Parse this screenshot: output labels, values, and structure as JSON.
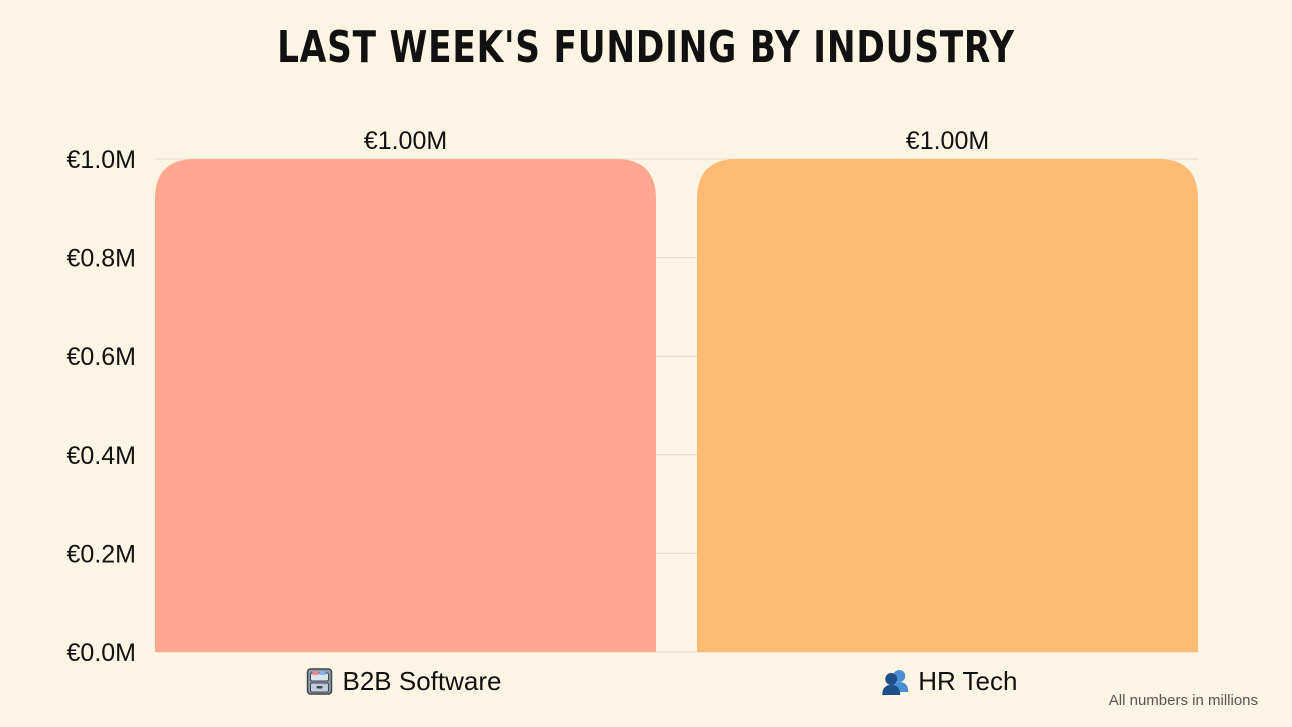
{
  "chart_data": {
    "type": "bar",
    "title": "LAST WEEK'S FUNDING BY INDUSTRY",
    "categories": [
      "B2B Software",
      "HR Tech"
    ],
    "category_icons": [
      "file-cabinet-icon",
      "people-icon"
    ],
    "values": [
      1.0,
      1.0
    ],
    "data_labels": [
      "€1.00M",
      "€1.00M"
    ],
    "bar_colors": [
      "#ffa791",
      "#ffba73"
    ],
    "ylim": [
      0,
      1.0
    ],
    "yticks": [
      0.0,
      0.2,
      0.4,
      0.6,
      0.8,
      1.0
    ],
    "ytick_labels": [
      "€0.0M",
      "€0.2M",
      "€0.4M",
      "€0.6M",
      "€0.8M",
      "€1.0M"
    ],
    "xlabel": "",
    "ylabel": "",
    "grid": true,
    "legend": "none"
  },
  "footnote": "All numbers in millions",
  "colors": {
    "background": "#fdf5e4",
    "grid": "#e3dcc9",
    "text": "#111111"
  }
}
